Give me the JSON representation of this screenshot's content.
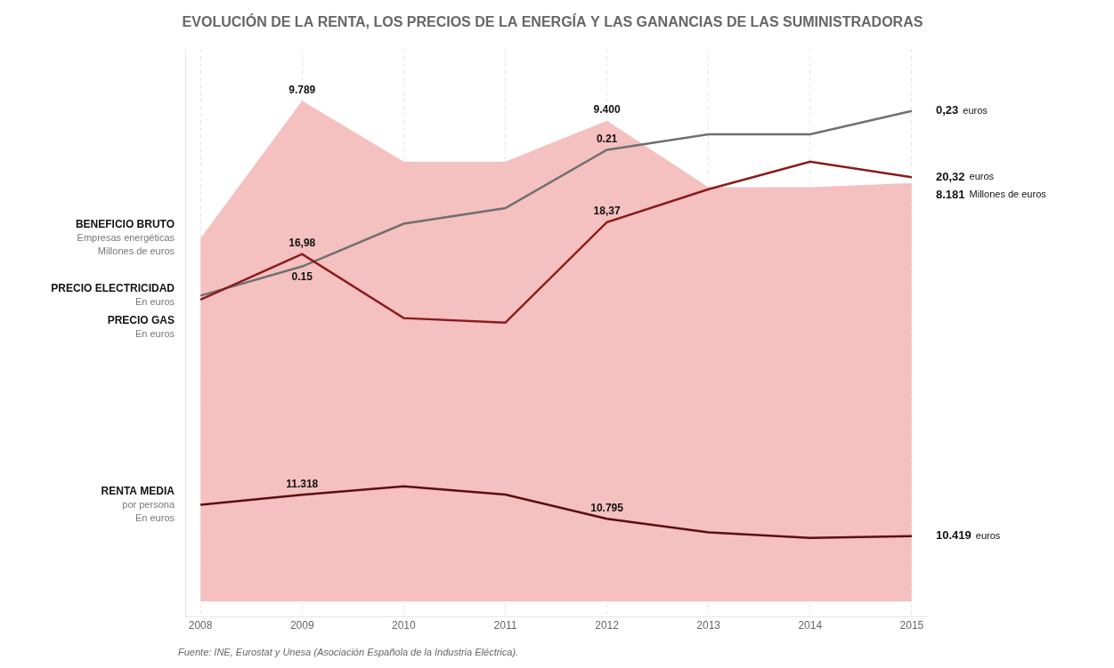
{
  "chart_data": {
    "type": "line",
    "title": "EVOLUCIÓN DE LA RENTA, LOS PRECIOS DE LA ENERGÍA Y LAS GANANCIAS DE LAS SUMINISTRADORAS",
    "source": "Fuente: INE, Eurostat y Unesa (Asociación Española de la Industria Eléctrica).",
    "x": [
      2008,
      2009,
      2010,
      2011,
      2012,
      2013,
      2014,
      2015
    ],
    "xlim": [
      2007.85,
      2015.15
    ],
    "xticks": [
      2008,
      2009,
      2010,
      2011,
      2012,
      2013,
      2014,
      2015
    ],
    "ylim": [
      -300,
      10800
    ],
    "tick_labels": "x",
    "grid": true,
    "series": [
      {
        "name": "BENEFICIO BRUTO",
        "type": "area",
        "color": "#f5c0c0",
        "values": [
          7100,
          9789,
          8600,
          8600,
          9400,
          8100,
          8100,
          8181
        ]
      },
      {
        "name": "PRECIO GAS",
        "type": "line",
        "color": "#8b1a1a",
        "values": [
          5900,
          6791,
          5540,
          5450,
          7416.5,
          8060,
          8600,
          8294
        ]
      },
      {
        "name": "PRECIO ELECTRICIDAD",
        "type": "line",
        "color": "#707070",
        "values": [
          5980,
          6550,
          7386,
          7690,
          8830,
          9134,
          9134,
          9590
        ]
      },
      {
        "name": "RENTA MEDIA",
        "type": "line",
        "color": "#5a0f0f",
        "values": [
          1890,
          2086.2,
          2250,
          2088,
          1615.5,
          1350,
          1242,
          1277.1
        ]
      }
    ],
    "annotations": [
      {
        "text": "Empresas energéticas",
        "series": "BENEFICIO BRUTO",
        "x": 2008
      },
      {
        "text": "Millones de euros",
        "series": "BENEFICIO BRUTO",
        "x": 2008
      },
      {
        "text": "En euros",
        "series": "PRECIO GAS",
        "x": 2008
      },
      {
        "text": "En euros",
        "series": "PRECIO ELECTRICIDAD",
        "x": 2008
      },
      {
        "text": "por persona",
        "series": "RENTA MEDIA",
        "x": 2008
      },
      {
        "text": "En euros",
        "series": "RENTA MEDIA",
        "x": 2008
      },
      {
        "text": "9.789",
        "series": "BENEFICIO BRUTO",
        "x": 2009
      },
      {
        "text": "9.400",
        "series": "BENEFICIO BRUTO",
        "x": 2012
      },
      {
        "text": "16,98",
        "series": "PRECIO GAS",
        "x": 2009
      },
      {
        "text": "18,37",
        "series": "PRECIO GAS",
        "x": 2012
      },
      {
        "text": "0.15",
        "series": "PRECIO ELECTRICIDAD",
        "x": 2009
      },
      {
        "text": "0.21",
        "series": "PRECIO ELECTRICIDAD",
        "x": 2012
      },
      {
        "text": "11.318",
        "series": "RENTA MEDIA",
        "x": 2009
      },
      {
        "text": "10.795",
        "series": "RENTA MEDIA",
        "x": 2012
      },
      {
        "text": "8.181",
        "series": "BENEFICIO BRUTO",
        "x": 2015
      },
      {
        "text": "Millones de euros",
        "series": "BENEFICIO BRUTO",
        "x": 2015
      },
      {
        "text": "0,23",
        "series": "PRECIO ELECTRICIDAD",
        "x": 2015
      },
      {
        "text": "euros",
        "series": "PRECIO ELECTRICIDAD",
        "x": 2015
      },
      {
        "text": "20,32",
        "series": "PRECIO GAS",
        "x": 2015
      },
      {
        "text": "euros",
        "series": "PRECIO GAS",
        "x": 2015
      },
      {
        "text": "10.419",
        "series": "RENTA MEDIA",
        "x": 2015
      },
      {
        "text": "euros",
        "series": "RENTA MEDIA",
        "x": 2015
      }
    ]
  }
}
